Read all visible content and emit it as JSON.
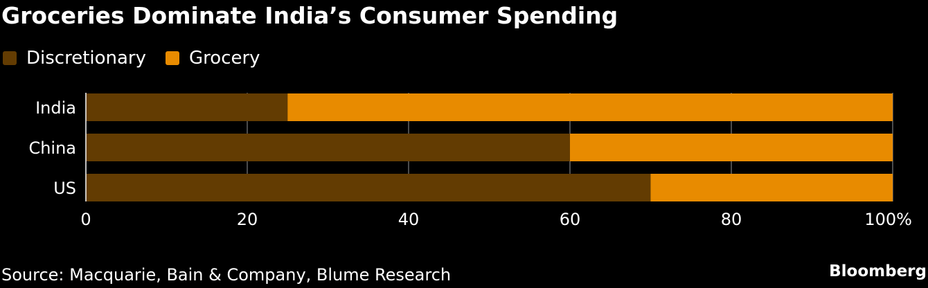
{
  "title": "Groceries Dominate India’s Consumer Spending",
  "source": "Source: Macquarie, Bain & Company, Blume Research",
  "brand": "Bloomberg",
  "colors": {
    "background": "#000000",
    "discretionary": "#633c02",
    "grocery": "#e88b00",
    "grid": "#666666",
    "axis": "#ffffff",
    "text": "#ffffff"
  },
  "legend": [
    {
      "label": "Discretionary",
      "color": "#633c02"
    },
    {
      "label": "Grocery",
      "color": "#e88b00"
    }
  ],
  "chart_data": {
    "type": "bar",
    "orientation": "horizontal",
    "stacked": true,
    "categories": [
      "India",
      "China",
      "US"
    ],
    "series": [
      {
        "name": "Discretionary",
        "values": [
          25,
          60,
          70
        ],
        "color": "#633c02"
      },
      {
        "name": "Grocery",
        "values": [
          75,
          40,
          30
        ],
        "color": "#e88b00"
      }
    ],
    "xlim": [
      0,
      100
    ],
    "xticks": [
      0,
      20,
      40,
      60,
      80,
      100
    ],
    "xtick_labels": [
      "0",
      "20",
      "40",
      "60",
      "80",
      "100%"
    ],
    "grid": true,
    "legend_position": "top-left"
  }
}
